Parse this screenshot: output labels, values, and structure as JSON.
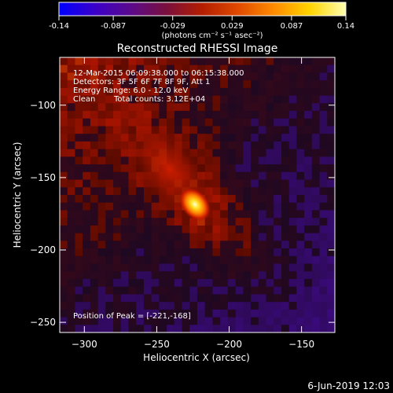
{
  "colorbar": {
    "ticks": [
      "-0.14",
      "-0.087",
      "-0.029",
      "0.029",
      "0.087",
      "0.14"
    ],
    "unit_label": "(photons cm⁻² s⁻¹ asec⁻²)",
    "colors": [
      "#0000ff",
      "#3a00c8",
      "#5c0a8c",
      "#7a0f3c",
      "#b41e00",
      "#e04a00",
      "#ff8c00",
      "#ffd400",
      "#ffffb0"
    ]
  },
  "chart_data": {
    "type": "heatmap",
    "title": "Reconstructed RHESSI Image",
    "xlabel": "Heliocentric X (arcsec)",
    "ylabel": "Heliocentric Y (arcsec)",
    "x_ticks": [
      -300,
      -250,
      -200,
      -150
    ],
    "y_ticks": [
      -100,
      -150,
      -200,
      -250
    ],
    "xlim": [
      -317,
      -127
    ],
    "ylim": [
      -257,
      -67
    ],
    "color_range": [
      -0.14,
      0.14
    ],
    "peak": {
      "x": -221,
      "y": -168
    },
    "annotations": {
      "time": "12-Mar-2015 06:09:38.000 to 06:15:38.000",
      "detectors": "Detectors: 3F 5F 6F 7F 8F 9F, Att 1",
      "energy": "Energy Range: 6.0 - 12.0 keV",
      "clean": "Clean",
      "counts": "Total counts: 3.12E+04",
      "peak_label": "Position of Peak = [-221,-168]"
    }
  },
  "footer": {
    "timestamp": "6-Jun-2019 12:03"
  }
}
